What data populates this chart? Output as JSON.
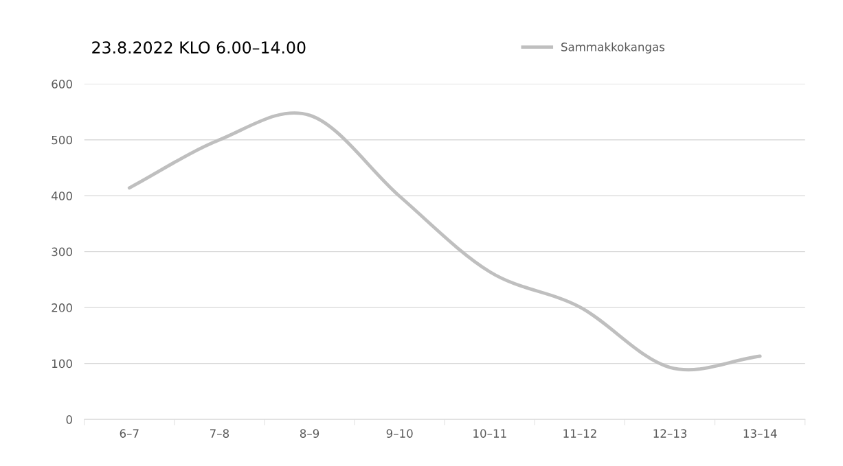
{
  "chart_data": {
    "type": "line",
    "title": "23.8.2022 KLO 6.00–14.00",
    "categories": [
      "6–7",
      "7–8",
      "8–9",
      "9–10",
      "10–11",
      "11–12",
      "12–13",
      "13–14"
    ],
    "series": [
      {
        "name": "Sammakkokangas",
        "color": "#bfbfbf",
        "values": [
          414,
          500,
          544,
          399,
          264,
          201,
          93,
          113
        ]
      }
    ],
    "ylim": [
      0,
      600
    ],
    "yticks": [
      0,
      100,
      200,
      300,
      400,
      500,
      600
    ],
    "grid": "y",
    "legend": "top right",
    "marker": "none",
    "line_style": "solid"
  }
}
